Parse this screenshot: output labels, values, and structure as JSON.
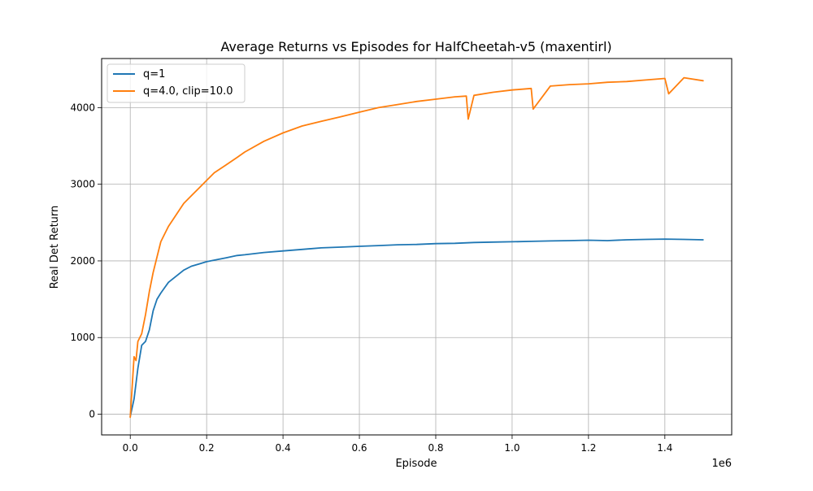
{
  "chart_data": {
    "type": "line",
    "title": "Average Returns vs Episodes for HalfCheetah-v5 (maxentirl)",
    "xlabel": "Episode",
    "ylabel": "Real Det Return",
    "x_offset_label": "1e6",
    "xlim": [
      -0.075,
      1.575
    ],
    "ylim": [
      -270,
      4640
    ],
    "x_unit_multiplier": 1000000,
    "x_ticks": [
      0.0,
      0.2,
      0.4,
      0.6,
      0.8,
      1.0,
      1.2,
      1.4
    ],
    "x_tick_labels": [
      "0.0",
      "0.2",
      "0.4",
      "0.6",
      "0.8",
      "1.0",
      "1.2",
      "1.4"
    ],
    "y_ticks": [
      0,
      1000,
      2000,
      3000,
      4000
    ],
    "y_tick_labels": [
      "0",
      "1000",
      "2000",
      "3000",
      "4000"
    ],
    "grid": true,
    "legend_position": "top-left",
    "series": [
      {
        "name": "q=1",
        "color": "#1f77b4",
        "x": [
          0.0,
          0.01,
          0.02,
          0.03,
          0.04,
          0.05,
          0.06,
          0.07,
          0.08,
          0.09,
          0.1,
          0.12,
          0.14,
          0.16,
          0.18,
          0.2,
          0.22,
          0.25,
          0.28,
          0.3,
          0.35,
          0.4,
          0.45,
          0.5,
          0.55,
          0.6,
          0.65,
          0.7,
          0.75,
          0.8,
          0.85,
          0.9,
          0.95,
          1.0,
          1.05,
          1.1,
          1.15,
          1.2,
          1.25,
          1.3,
          1.35,
          1.4,
          1.45,
          1.5
        ],
        "y": [
          -30,
          200,
          600,
          900,
          950,
          1100,
          1350,
          1500,
          1580,
          1650,
          1720,
          1800,
          1880,
          1930,
          1960,
          1990,
          2010,
          2040,
          2070,
          2080,
          2110,
          2130,
          2150,
          2170,
          2180,
          2190,
          2200,
          2210,
          2215,
          2225,
          2230,
          2240,
          2245,
          2250,
          2255,
          2260,
          2265,
          2270,
          2265,
          2275,
          2280,
          2285,
          2280,
          2275
        ]
      },
      {
        "name": "q=4.0, clip=10.0",
        "color": "#ff7f0e",
        "x": [
          0.0,
          0.01,
          0.015,
          0.02,
          0.025,
          0.03,
          0.04,
          0.05,
          0.06,
          0.07,
          0.08,
          0.09,
          0.1,
          0.12,
          0.14,
          0.16,
          0.18,
          0.2,
          0.22,
          0.25,
          0.28,
          0.3,
          0.35,
          0.4,
          0.45,
          0.5,
          0.55,
          0.6,
          0.65,
          0.7,
          0.75,
          0.8,
          0.85,
          0.88,
          0.885,
          0.9,
          0.95,
          1.0,
          1.05,
          1.055,
          1.1,
          1.15,
          1.2,
          1.25,
          1.3,
          1.35,
          1.4,
          1.41,
          1.45,
          1.5
        ],
        "y": [
          -40,
          750,
          700,
          950,
          1000,
          1050,
          1300,
          1600,
          1850,
          2050,
          2250,
          2350,
          2450,
          2600,
          2750,
          2850,
          2950,
          3050,
          3150,
          3250,
          3350,
          3420,
          3560,
          3670,
          3760,
          3820,
          3880,
          3940,
          4000,
          4040,
          4080,
          4110,
          4140,
          4150,
          3850,
          4160,
          4200,
          4230,
          4250,
          3980,
          4280,
          4300,
          4310,
          4330,
          4340,
          4360,
          4380,
          4180,
          4390,
          4350
        ]
      }
    ]
  }
}
